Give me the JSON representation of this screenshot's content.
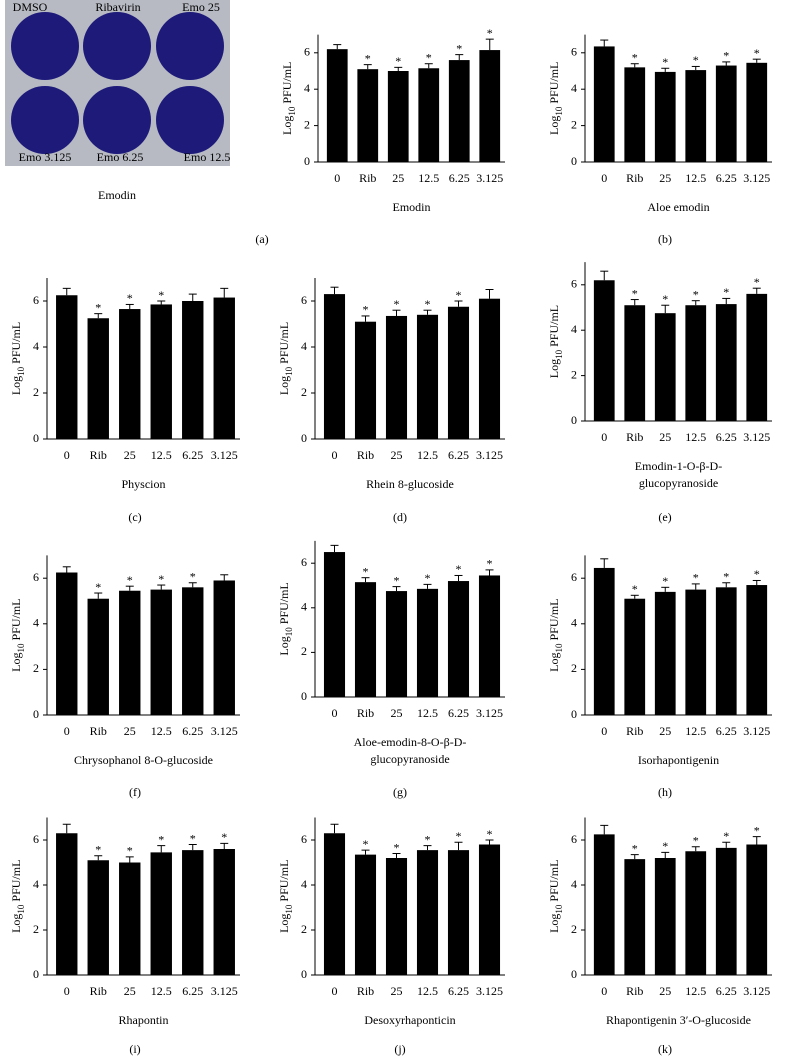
{
  "photo": {
    "well_labels": [
      "DMSO",
      "Ribavirin",
      "Emo 25",
      "Emo 3.125",
      "Emo 6.25",
      "Emo 12.5"
    ],
    "caption": "Emodin"
  },
  "chart_data": [
    {
      "type": "bar",
      "panel": "(a)",
      "xlabel": "Emodin",
      "ylabel": [
        "Log",
        "10",
        " PFU/mL"
      ],
      "categories": [
        "0",
        "Rib",
        "25",
        "12.5",
        "6.25",
        "3.125"
      ],
      "values": [
        6.2,
        5.1,
        5.0,
        5.15,
        5.6,
        6.15
      ],
      "errors": [
        0.25,
        0.25,
        0.2,
        0.25,
        0.3,
        0.6
      ],
      "stars": [
        null,
        "*",
        "*",
        "*",
        "*",
        "*"
      ],
      "color": "#000000",
      "ylim": [
        0,
        7
      ],
      "yticks": [
        0,
        2,
        4,
        6
      ]
    },
    {
      "type": "bar",
      "panel": "(b)",
      "xlabel": "Aloe emodin",
      "ylabel": [
        "Log",
        "10",
        " PFU/mL"
      ],
      "categories": [
        "0",
        "Rib",
        "25",
        "12.5",
        "6.25",
        "3.125"
      ],
      "values": [
        6.35,
        5.2,
        4.95,
        5.05,
        5.3,
        5.45
      ],
      "errors": [
        0.35,
        0.2,
        0.2,
        0.2,
        0.2,
        0.2
      ],
      "stars": [
        null,
        "*",
        "*",
        "*",
        "*",
        "*"
      ],
      "color": "#000000",
      "ylim": [
        0,
        7
      ],
      "yticks": [
        0,
        2,
        4,
        6
      ]
    },
    {
      "type": "bar",
      "panel": "(c)",
      "xlabel": "Physcion",
      "ylabel": [
        "Log",
        "10",
        " PFU/mL"
      ],
      "categories": [
        "0",
        "Rib",
        "25",
        "12.5",
        "6.25",
        "3.125"
      ],
      "values": [
        6.25,
        5.25,
        5.65,
        5.85,
        6.0,
        6.15
      ],
      "errors": [
        0.3,
        0.2,
        0.2,
        0.15,
        0.3,
        0.4
      ],
      "stars": [
        null,
        "*",
        "*",
        "*",
        null,
        null
      ],
      "color": "#000000",
      "ylim": [
        0,
        7
      ],
      "yticks": [
        0,
        2,
        4,
        6
      ]
    },
    {
      "type": "bar",
      "panel": "(d)",
      "xlabel": "Rhein 8-glucoside",
      "ylabel": [
        "Log",
        "10",
        " PFU/mL"
      ],
      "categories": [
        "0",
        "Rib",
        "25",
        "12.5",
        "6.25",
        "3.125"
      ],
      "values": [
        6.3,
        5.1,
        5.35,
        5.4,
        5.75,
        6.1
      ],
      "errors": [
        0.3,
        0.25,
        0.25,
        0.2,
        0.25,
        0.4
      ],
      "stars": [
        null,
        "*",
        "*",
        "*",
        "*",
        null
      ],
      "color": "#000000",
      "ylim": [
        0,
        7
      ],
      "yticks": [
        0,
        2,
        4,
        6
      ]
    },
    {
      "type": "bar",
      "panel": "(e)",
      "xlabel": [
        "Emodin-1-O-β-D-",
        "glucopyranoside"
      ],
      "ylabel": [
        "Log",
        "10",
        " PFU/mL"
      ],
      "categories": [
        "0",
        "Rib",
        "25",
        "12.5",
        "6.25",
        "3.125"
      ],
      "values": [
        6.2,
        5.1,
        4.75,
        5.1,
        5.15,
        5.6
      ],
      "errors": [
        0.4,
        0.25,
        0.35,
        0.2,
        0.25,
        0.25
      ],
      "stars": [
        null,
        "*",
        "*",
        "*",
        "*",
        "*"
      ],
      "color": "#000000",
      "ylim": [
        0,
        7
      ],
      "yticks": [
        0,
        2,
        4,
        6
      ]
    },
    {
      "type": "bar",
      "panel": "(f)",
      "xlabel": "Chrysophanol 8-O-glucoside",
      "ylabel": [
        "Log",
        "10",
        " PFU/mL"
      ],
      "categories": [
        "0",
        "Rib",
        "25",
        "12.5",
        "6.25",
        "3.125"
      ],
      "values": [
        6.25,
        5.1,
        5.45,
        5.5,
        5.6,
        5.9
      ],
      "errors": [
        0.25,
        0.25,
        0.2,
        0.2,
        0.2,
        0.25
      ],
      "stars": [
        null,
        "*",
        "*",
        "*",
        "*",
        null
      ],
      "color": "#000000",
      "ylim": [
        0,
        7
      ],
      "yticks": [
        0,
        2,
        4,
        6
      ]
    },
    {
      "type": "bar",
      "panel": "(g)",
      "xlabel": [
        "Aloe-emodin-8-O-β-D-",
        "glucopyranoside"
      ],
      "ylabel": [
        "Log",
        "10",
        " PFU/mL"
      ],
      "categories": [
        "0",
        "Rib",
        "25",
        "12.5",
        "6.25",
        "3.125"
      ],
      "values": [
        6.5,
        5.15,
        4.75,
        4.85,
        5.2,
        5.45
      ],
      "errors": [
        0.3,
        0.2,
        0.2,
        0.2,
        0.25,
        0.25
      ],
      "stars": [
        null,
        "*",
        "*",
        "*",
        "*",
        "*"
      ],
      "color": "#000000",
      "ylim": [
        0,
        7
      ],
      "yticks": [
        0,
        2,
        4,
        6
      ]
    },
    {
      "type": "bar",
      "panel": "(h)",
      "xlabel": "Isorhapontigenin",
      "ylabel": [
        "Log",
        "10",
        " PFU/mL"
      ],
      "categories": [
        "0",
        "Rib",
        "25",
        "12.5",
        "6.25",
        "3.125"
      ],
      "values": [
        6.45,
        5.1,
        5.4,
        5.5,
        5.6,
        5.7
      ],
      "errors": [
        0.4,
        0.15,
        0.2,
        0.25,
        0.2,
        0.2
      ],
      "stars": [
        null,
        "*",
        "*",
        "*",
        "*",
        "*"
      ],
      "color": "#000000",
      "ylim": [
        0,
        7
      ],
      "yticks": [
        0,
        2,
        4,
        6
      ]
    },
    {
      "type": "bar",
      "panel": "(i)",
      "xlabel": "Rhapontin",
      "ylabel": [
        "Log",
        "10",
        " PFU/mL"
      ],
      "categories": [
        "0",
        "Rib",
        "25",
        "12.5",
        "6.25",
        "3.125"
      ],
      "values": [
        6.3,
        5.1,
        5.0,
        5.45,
        5.55,
        5.6
      ],
      "errors": [
        0.4,
        0.2,
        0.25,
        0.3,
        0.25,
        0.25
      ],
      "stars": [
        null,
        "*",
        "*",
        "*",
        "*",
        "*"
      ],
      "color": "#000000",
      "ylim": [
        0,
        7
      ],
      "yticks": [
        0,
        2,
        4,
        6
      ]
    },
    {
      "type": "bar",
      "panel": "(j)",
      "xlabel": "Desoxyrhaponticin",
      "ylabel": [
        "Log",
        "10",
        " PFU/mL"
      ],
      "categories": [
        "0",
        "Rib",
        "25",
        "12.5",
        "6.25",
        "3.125"
      ],
      "values": [
        6.3,
        5.35,
        5.2,
        5.55,
        5.55,
        5.8
      ],
      "errors": [
        0.4,
        0.2,
        0.2,
        0.2,
        0.35,
        0.2
      ],
      "stars": [
        null,
        "*",
        "*",
        "*",
        "*",
        "*"
      ],
      "color": "#000000",
      "ylim": [
        0,
        7
      ],
      "yticks": [
        0,
        2,
        4,
        6
      ]
    },
    {
      "type": "bar",
      "panel": "(k)",
      "xlabel": "Rhapontigenin 3′-O-glucoside",
      "ylabel": [
        "Log",
        "10",
        " PFU/mL"
      ],
      "categories": [
        "0",
        "Rib",
        "25",
        "12.5",
        "6.25",
        "3.125"
      ],
      "values": [
        6.25,
        5.15,
        5.2,
        5.5,
        5.65,
        5.8
      ],
      "errors": [
        0.4,
        0.2,
        0.25,
        0.2,
        0.25,
        0.35
      ],
      "stars": [
        null,
        "*",
        "*",
        "*",
        "*",
        "*"
      ],
      "color": "#000000",
      "ylim": [
        0,
        7
      ],
      "yticks": [
        0,
        2,
        4,
        6
      ]
    }
  ]
}
